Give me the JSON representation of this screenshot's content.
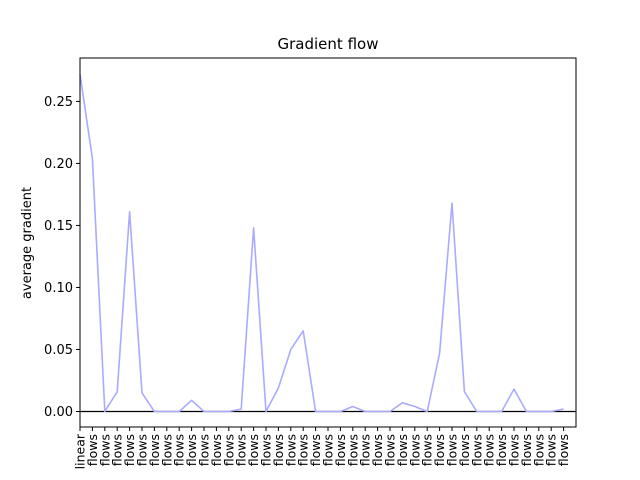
{
  "chart_data": {
    "type": "line",
    "title": "Gradient flow",
    "xlabel": "",
    "ylabel": "average gradient",
    "ylim": [
      -0.0125,
      0.285
    ],
    "yticks": [
      0.0,
      0.05,
      0.1,
      0.15,
      0.2,
      0.25
    ],
    "ytick_labels": [
      "0.00",
      "0.05",
      "0.10",
      "0.15",
      "0.20",
      "0.25"
    ],
    "grid": false,
    "zero_line": true,
    "series_color": "#aaaaff",
    "zero_line_color": "#000000",
    "categories": [
      "linear",
      "flows",
      "flows",
      "flows",
      "flows",
      "flows",
      "flows",
      "flows",
      "flows",
      "flows",
      "flows",
      "flows",
      "flows",
      "flows",
      "flows",
      "flows",
      "flows",
      "flows",
      "flows",
      "flows",
      "flows",
      "flows",
      "flows",
      "flows",
      "flows",
      "flows",
      "flows",
      "flows",
      "flows",
      "flows",
      "flows",
      "flows",
      "flows",
      "flows",
      "flows",
      "flows",
      "flows",
      "flows",
      "flows",
      "flows"
    ],
    "values": [
      0.272,
      0.204,
      0.0,
      0.016,
      0.161,
      0.015,
      0.0,
      0.0,
      0.0,
      0.009,
      0.0,
      0.0,
      0.0,
      0.002,
      0.148,
      0.0,
      0.019,
      0.05,
      0.065,
      0.0,
      0.0,
      0.0,
      0.004,
      0.0,
      0.0,
      0.0,
      0.007,
      0.004,
      0.0,
      0.047,
      0.168,
      0.016,
      0.0,
      0.0,
      0.0,
      0.018,
      0.0,
      0.0,
      0.0,
      0.002
    ]
  }
}
